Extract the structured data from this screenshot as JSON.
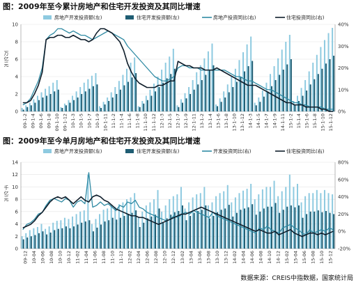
{
  "source": "数据来源：CREIS中指数据，国家统计局",
  "colors": {
    "light_bar": "#8ecae0",
    "dark_bar": "#1f5d73",
    "line_teal": "#2f8aa3",
    "line_dark": "#0f1e2b"
  },
  "chart_data": [
    {
      "type": "bar",
      "title": "图：2009年至今累计房地产和住宅开发投资及其同比增速",
      "y_unit_label": "万亿元",
      "ylim": [
        0,
        10
      ],
      "yticks": [
        "0",
        "2",
        "4",
        "6",
        "8",
        "10"
      ],
      "y2lim": [
        0,
        40
      ],
      "y2ticks": [
        "0%",
        "10%",
        "20%",
        "30%",
        "40%"
      ],
      "legend": [
        "房地产开发投资额(左)",
        "住宅开发投资额(左)",
        "房地产投资同比(右)",
        "住宅投资同比(右)"
      ],
      "legend_placement": "top",
      "xtick_labels": [
        "09-1-2",
        "09-1-4",
        "09-1-6",
        "09-1-8",
        "09-1-10",
        "09-1-12",
        "10-1-3",
        "10-1-5",
        "10-1-7",
        "10-1-9",
        "10-1-11",
        "11-1-2",
        "11-1-4",
        "11-1-6",
        "11-1-8",
        "11-1-10",
        "11-1-12",
        "12-1-3",
        "12-1-5",
        "12-1-7",
        "12-1-9",
        "12-1-11",
        "13-1-2",
        "13-1-4",
        "13-1-6",
        "13-1-8",
        "13-1-10",
        "13-1-12",
        "14-1-3",
        "14-1-5",
        "14-1-7",
        "14-1-9",
        "14-1-11",
        "15-1-2",
        "15-1-4",
        "15-1-6",
        "15-1-8",
        "15-1-10",
        "15-1-12"
      ],
      "series": [
        {
          "name": "房地产开发投资额(左)",
          "kind": "bar",
          "values": [
            0.4,
            0.7,
            1.0,
            1.4,
            1.8,
            2.2,
            2.6,
            2.9,
            3.3,
            3.6,
            0.5,
            0.9,
            1.3,
            1.8,
            2.3,
            2.8,
            3.3,
            3.7,
            4.1,
            4.4,
            0.6,
            1.1,
            1.6,
            2.2,
            2.8,
            3.5,
            4.2,
            4.9,
            5.6,
            6.2,
            0.6,
            1.2,
            1.8,
            2.5,
            3.2,
            4.0,
            4.8,
            5.6,
            6.3,
            7.2,
            0.7,
            1.4,
            2.1,
            2.8,
            3.6,
            4.5,
            5.3,
            6.1,
            6.9,
            7.8,
            0.8,
            1.5,
            2.3,
            3.1,
            4.0,
            4.9,
            5.9,
            6.8,
            7.7,
            8.6,
            1.0,
            1.6,
            2.4,
            3.3,
            4.3,
            5.2,
            6.1,
            7.1,
            8.0,
            8.8,
            1.2,
            1.8,
            2.7,
            3.6,
            4.6,
            5.6,
            6.5,
            7.4,
            8.2,
            9.0,
            9.6
          ]
        },
        {
          "name": "住宅开发投资额(左)",
          "kind": "bar",
          "values": [
            0.2,
            0.5,
            0.7,
            1.0,
            1.3,
            1.6,
            1.8,
            2.0,
            2.3,
            2.5,
            0.4,
            0.7,
            1.0,
            1.3,
            1.6,
            2.0,
            2.3,
            2.6,
            2.9,
            3.1,
            0.4,
            0.8,
            1.2,
            1.6,
            2.0,
            2.5,
            3.0,
            3.4,
            3.9,
            4.4,
            0.5,
            0.9,
            1.3,
            1.8,
            2.3,
            2.8,
            3.3,
            3.8,
            4.3,
            4.9,
            0.5,
            1.0,
            1.5,
            2.0,
            2.5,
            3.1,
            3.6,
            4.2,
            4.7,
            5.3,
            0.6,
            1.1,
            1.6,
            2.2,
            2.8,
            3.4,
            4.0,
            4.6,
            5.2,
            5.8,
            0.7,
            1.1,
            1.7,
            2.3,
            2.9,
            3.6,
            4.2,
            4.8,
            5.4,
            6.0,
            0.8,
            1.2,
            1.8,
            2.4,
            3.1,
            3.7,
            4.3,
            4.9,
            5.5,
            6.0,
            6.4
          ]
        },
        {
          "name": "房地产投资同比(右)",
          "kind": "line",
          "values": [
            3,
            4,
            6,
            10,
            14,
            20,
            33,
            35,
            36,
            38,
            38,
            37,
            36,
            37,
            36,
            35,
            35,
            34,
            33,
            34,
            35,
            36,
            37,
            36,
            35,
            34,
            33,
            30,
            28,
            26,
            24,
            22,
            20,
            18,
            16,
            15,
            14,
            14,
            15,
            16,
            20,
            21,
            21,
            20,
            20,
            20,
            19,
            19,
            19,
            19,
            19,
            19,
            19,
            18,
            17,
            16,
            16,
            15,
            14,
            14,
            13,
            12,
            11,
            10,
            10,
            9,
            8,
            7,
            6,
            5,
            4,
            4,
            3,
            3,
            2,
            2,
            2,
            2,
            1,
            1,
            1
          ]
        },
        {
          "name": "住宅投资同比(右)",
          "kind": "line",
          "values": [
            4,
            4,
            5,
            8,
            12,
            18,
            33,
            34,
            34,
            35,
            35,
            34,
            34,
            35,
            34,
            33,
            33,
            32,
            33,
            36,
            38,
            38,
            37,
            36,
            34,
            32,
            28,
            22,
            18,
            15,
            13,
            12,
            11,
            11,
            11,
            12,
            12,
            13,
            14,
            14,
            23,
            22,
            21,
            21,
            20,
            20,
            20,
            19,
            19,
            19,
            20,
            19,
            18,
            17,
            16,
            15,
            14,
            13,
            12,
            12,
            12,
            11,
            10,
            9,
            8,
            7,
            6,
            5,
            4,
            4,
            3,
            3,
            3,
            2,
            2,
            2,
            2,
            1,
            1,
            0,
            0
          ]
        }
      ]
    },
    {
      "type": "bar",
      "title": "图：2009年至今单月房地产和住宅开发投资及其同比增速",
      "y_unit_label": "千亿元",
      "ylim": [
        0,
        14
      ],
      "yticks": [
        "0",
        "2",
        "4",
        "6",
        "8",
        "10",
        "12",
        "14"
      ],
      "y2lim": [
        -20,
        80
      ],
      "y2ticks": [
        "-20%",
        "0%",
        "20%",
        "40%",
        "60%",
        "80%"
      ],
      "legend": [
        "房地产开发投资额(左)",
        "住宅开发投资额(左)",
        "开发投资同比(右)",
        "住宅投资同比(右)"
      ],
      "legend_placement": "top",
      "xtick_labels": [
        "09-12",
        "10-04",
        "10-06",
        "10-08",
        "10-10",
        "10-12",
        "11-02",
        "11-04",
        "11-06",
        "11-08",
        "11-10",
        "11-12",
        "12-02",
        "12-04",
        "12-06",
        "12-08",
        "12-10",
        "12-12",
        "13-02",
        "13-04",
        "13-06",
        "13-08",
        "13-10",
        "13-12",
        "14-02",
        "14-04",
        "14-06",
        "14-08",
        "14-10",
        "14-12",
        "15-02",
        "15-04",
        "15-06",
        "15-08",
        "15-10",
        "15-12"
      ],
      "series": [
        {
          "name": "房地产开发投资额(左)",
          "kind": "bar",
          "values": [
            2.0,
            2.5,
            3.0,
            3.3,
            3.5,
            4.0,
            3.2,
            3.6,
            4.2,
            4.5,
            4.6,
            5.0,
            4.8,
            5.2,
            5.6,
            6.0,
            6.2,
            12.0,
            4.0,
            4.8,
            5.6,
            6.3,
            6.5,
            7.0,
            6.8,
            7.2,
            7.5,
            8.0,
            8.3,
            9.0,
            5.0,
            6.0,
            7.0,
            7.5,
            8.0,
            9.5,
            6.0,
            7.0,
            8.0,
            8.5,
            8.8,
            10.0,
            6.5,
            7.5,
            8.3,
            8.8,
            9.0,
            10.0,
            7.0,
            7.5,
            8.5,
            9.0,
            9.3,
            10.3,
            7.5,
            8.3,
            9.0,
            9.4,
            9.7,
            10.5,
            8.0,
            8.8,
            9.6,
            10.0,
            10.0,
            11.0,
            8.5,
            9.3,
            10.0,
            12.0,
            10.0,
            10.5,
            7.5,
            8.5,
            9.0,
            9.0,
            9.5,
            9.0,
            9.5,
            9.0,
            8.8
          ]
        },
        {
          "name": "住宅开发投资额(左)",
          "kind": "bar",
          "values": [
            1.5,
            1.8,
            2.0,
            2.2,
            2.5,
            2.8,
            2.3,
            2.6,
            3.0,
            3.2,
            3.3,
            3.6,
            3.3,
            3.6,
            3.9,
            4.2,
            4.4,
            4.6,
            2.8,
            3.4,
            3.9,
            4.4,
            4.6,
            5.0,
            4.7,
            5.0,
            5.3,
            5.6,
            5.8,
            6.2,
            3.5,
            4.2,
            4.9,
            5.2,
            5.5,
            6.5,
            4.2,
            4.9,
            5.5,
            5.9,
            6.1,
            7.0,
            4.6,
            5.3,
            5.8,
            6.1,
            6.3,
            7.0,
            4.9,
            5.3,
            5.9,
            6.3,
            6.5,
            7.1,
            5.2,
            5.8,
            6.3,
            6.5,
            6.7,
            7.2,
            5.5,
            6.0,
            6.5,
            6.8,
            6.8,
            7.4,
            5.8,
            6.3,
            6.8,
            7.0,
            6.7,
            7.0,
            5.0,
            5.6,
            6.0,
            6.0,
            6.2,
            5.9,
            6.1,
            5.8,
            5.6
          ]
        },
        {
          "name": "开发投资同比(右)",
          "kind": "line",
          "values": [
            2,
            8,
            10,
            14,
            20,
            22,
            30,
            36,
            38,
            36,
            34,
            38,
            36,
            28,
            34,
            36,
            32,
            68,
            28,
            30,
            34,
            30,
            32,
            28,
            24,
            30,
            28,
            34,
            32,
            36,
            28,
            26,
            22,
            20,
            18,
            16,
            14,
            12,
            14,
            18,
            16,
            20,
            22,
            20,
            24,
            22,
            20,
            18,
            16,
            22,
            18,
            16,
            14,
            12,
            10,
            8,
            6,
            4,
            2,
            0,
            -2,
            4,
            2,
            6,
            2,
            0,
            -2,
            4,
            6,
            8,
            4,
            2,
            -2,
            -4,
            2,
            -2,
            0,
            2,
            0,
            4,
            2
          ]
        },
        {
          "name": "住宅投资同比(右)",
          "kind": "line",
          "values": [
            4,
            6,
            8,
            12,
            18,
            22,
            28,
            34,
            38,
            40,
            38,
            40,
            36,
            32,
            36,
            40,
            36,
            34,
            40,
            42,
            40,
            36,
            34,
            30,
            26,
            24,
            22,
            20,
            18,
            18,
            16,
            16,
            14,
            12,
            10,
            8,
            10,
            12,
            14,
            16,
            18,
            20,
            20,
            22,
            24,
            26,
            28,
            26,
            24,
            22,
            20,
            18,
            16,
            14,
            12,
            10,
            8,
            6,
            4,
            2,
            0,
            2,
            0,
            -2,
            -2,
            0,
            -4,
            -2,
            0,
            2,
            -2,
            -4,
            -6,
            -4,
            -2,
            -2,
            -4,
            -2,
            -4,
            -2,
            0
          ]
        }
      ]
    }
  ]
}
